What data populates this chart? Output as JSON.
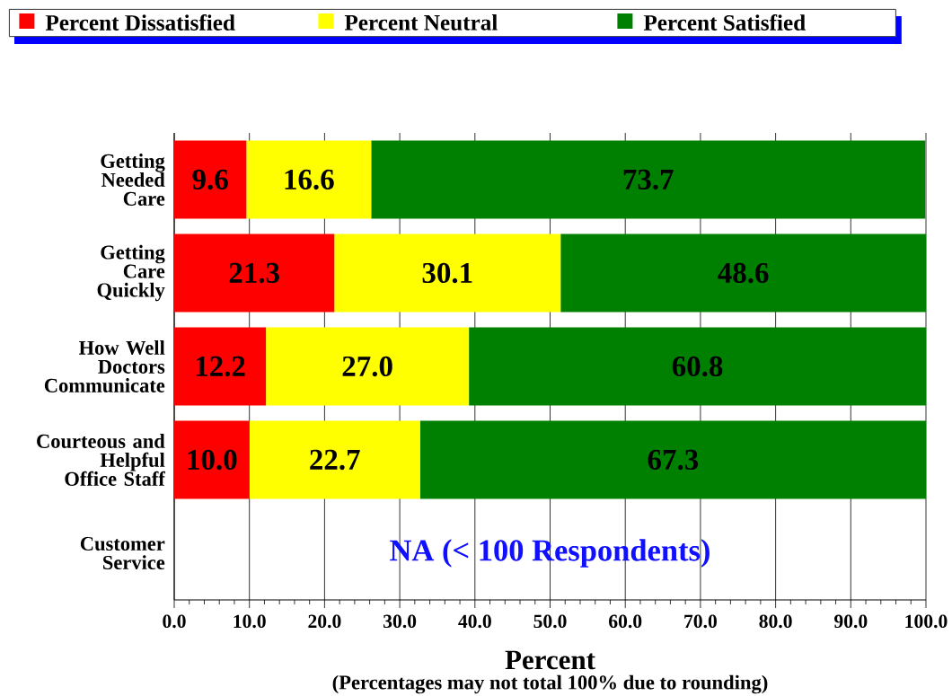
{
  "chart_data": {
    "type": "bar",
    "orientation": "horizontal",
    "stacked": true,
    "categories": [
      "Getting\nNeeded\nCare",
      "Getting\nCare\nQuickly",
      "How Well\nDoctors\nCommunicate",
      "Courteous and\nHelpful\nOffice Staff",
      "Customer\nService"
    ],
    "series": [
      {
        "name": "Percent Dissatisfied",
        "color": "#ff0000",
        "values": [
          9.6,
          21.3,
          12.2,
          10.0,
          null
        ],
        "value_labels": [
          "9.6",
          "21.3",
          "12.2",
          "10.0",
          null
        ]
      },
      {
        "name": "Percent Neutral",
        "color": "#ffff00",
        "values": [
          16.6,
          30.1,
          27.0,
          22.7,
          null
        ],
        "value_labels": [
          "16.6",
          "30.1",
          "27.0",
          "22.7",
          null
        ]
      },
      {
        "name": "Percent Satisfied",
        "color": "#008000",
        "values": [
          73.7,
          48.6,
          60.8,
          67.3,
          null
        ],
        "value_labels": [
          "73.7",
          "48.6",
          "60.8",
          "67.3",
          null
        ]
      }
    ],
    "xlabel": "Percent",
    "annotations": [
      "NA (< 100 Respondents)",
      "(Percentages may not total 100% due to rounding)"
    ],
    "xlim": [
      0,
      100
    ],
    "xticks": [
      {
        "value": 0,
        "label": "0.0"
      },
      {
        "value": 10,
        "label": "10.0"
      },
      {
        "value": 20,
        "label": "20.0"
      },
      {
        "value": 30,
        "label": "30.0"
      },
      {
        "value": 40,
        "label": "40.0"
      },
      {
        "value": 50,
        "label": "50.0"
      },
      {
        "value": 60,
        "label": "60.0"
      },
      {
        "value": 70,
        "label": "70.0"
      },
      {
        "value": 80,
        "label": "80.0"
      },
      {
        "value": 90,
        "label": "90.0"
      },
      {
        "value": 100,
        "label": "100.0"
      }
    ],
    "grid": "x",
    "legend": "top"
  }
}
